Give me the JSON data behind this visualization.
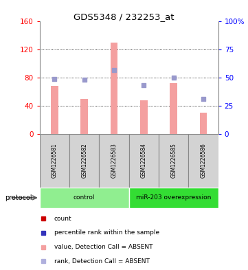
{
  "title": "GDS5348 / 232253_at",
  "samples": [
    "GSM1226581",
    "GSM1226582",
    "GSM1226583",
    "GSM1226584",
    "GSM1226585",
    "GSM1226586"
  ],
  "bar_values": [
    68,
    50,
    130,
    48,
    72,
    30
  ],
  "dot_values": [
    49,
    48,
    57,
    43,
    50,
    31
  ],
  "left_ylim": [
    0,
    160
  ],
  "right_ylim": [
    0,
    100
  ],
  "left_yticks": [
    0,
    40,
    80,
    120,
    160
  ],
  "right_yticks": [
    0,
    25,
    50,
    75,
    100
  ],
  "right_yticklabels": [
    "0",
    "25",
    "50",
    "75",
    "100%"
  ],
  "bar_color": "#f4a0a0",
  "dot_color": "#9999cc",
  "groups": [
    {
      "label": "control",
      "start": 0,
      "end": 3,
      "color": "#90ee90"
    },
    {
      "label": "miR-203 overexpression",
      "start": 3,
      "end": 6,
      "color": "#33dd33"
    }
  ],
  "protocol_label": "protocol",
  "legend_items": [
    {
      "color": "#cc0000",
      "label": "count"
    },
    {
      "color": "#3333bb",
      "label": "percentile rank within the sample"
    },
    {
      "color": "#f4a0a0",
      "label": "value, Detection Call = ABSENT"
    },
    {
      "color": "#b0b0dd",
      "label": "rank, Detection Call = ABSENT"
    }
  ],
  "grid_lines": [
    40,
    80,
    120
  ],
  "background_color": "#ffffff",
  "sample_area_color": "#d3d3d3",
  "sample_border_color": "#888888"
}
